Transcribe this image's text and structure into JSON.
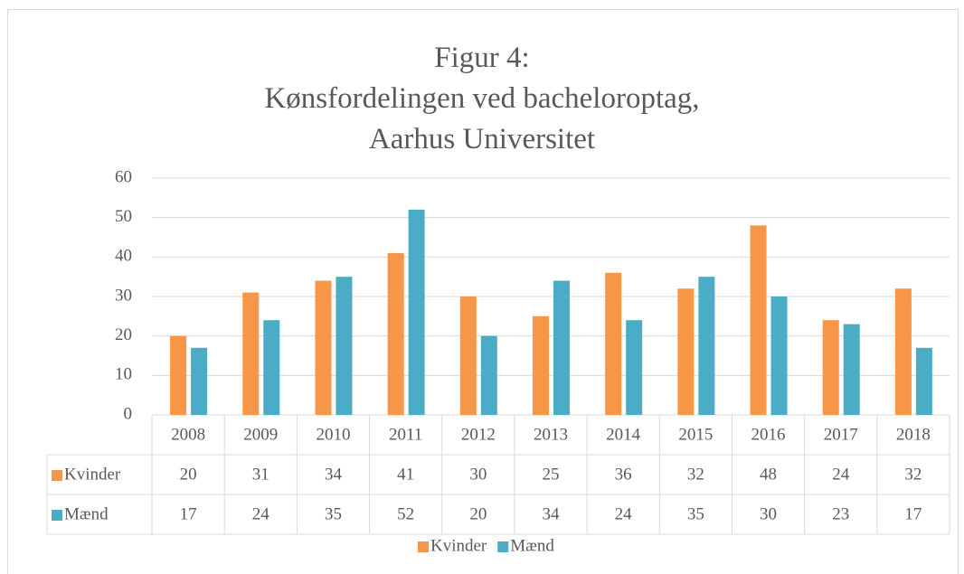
{
  "chart_data": {
    "type": "bar",
    "title": "Figur 4:",
    "subtitle": "Kønsfordelingen ved bacheloroptag, Aarhus Universitet",
    "categories": [
      "2008",
      "2009",
      "2010",
      "2011",
      "2012",
      "2013",
      "2014",
      "2015",
      "2016",
      "2017",
      "2018"
    ],
    "series": [
      {
        "name": "Kvinder",
        "color": "#f79646",
        "values": [
          20,
          31,
          34,
          41,
          30,
          25,
          36,
          32,
          48,
          24,
          32
        ]
      },
      {
        "name": "Mænd",
        "color": "#4bacc6",
        "values": [
          17,
          24,
          35,
          52,
          20,
          34,
          24,
          35,
          30,
          23,
          17
        ]
      }
    ],
    "ylim": [
      0,
      60
    ],
    "yticks": [
      0,
      10,
      20,
      30,
      40,
      50,
      60
    ],
    "grid": true,
    "legend": "bottom"
  }
}
